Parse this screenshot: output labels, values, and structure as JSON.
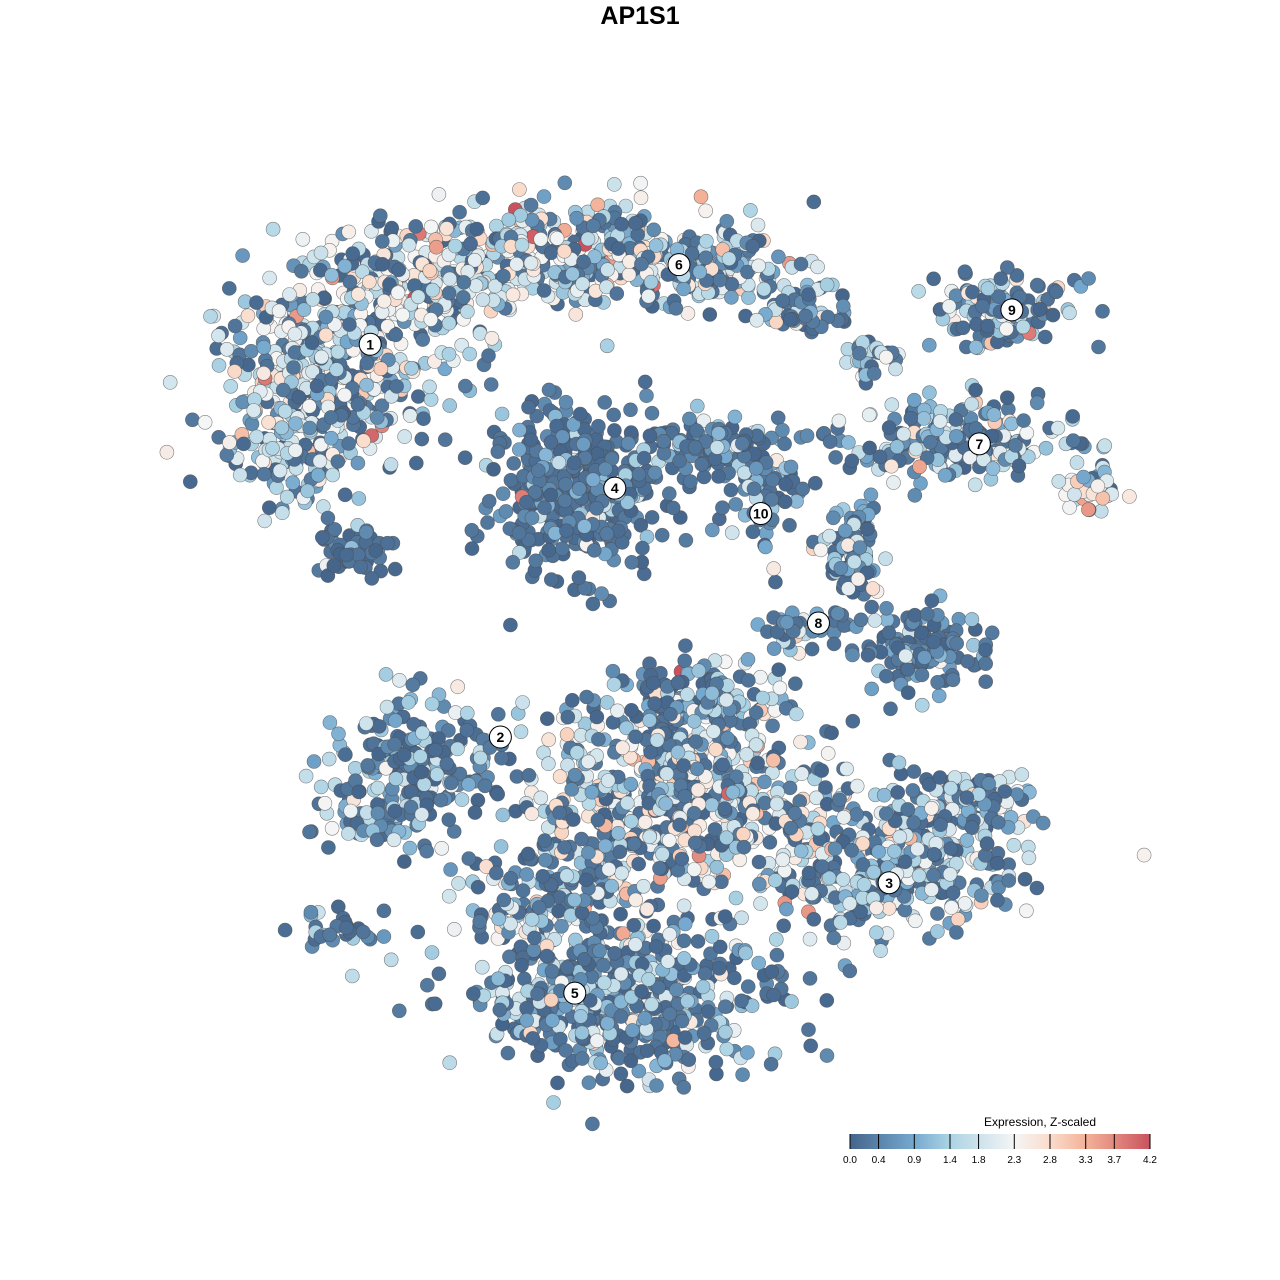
{
  "chart_data": {
    "type": "scatter",
    "title": "AP1S1",
    "xlabel": "",
    "ylabel": "",
    "xlim": [
      -50,
      50
    ],
    "ylim": [
      -50,
      50
    ],
    "grid": false,
    "axes_visible": false,
    "color_scale": {
      "title": "Expression, Z-scaled",
      "range": [
        0.0,
        4.2
      ],
      "ticks": [
        "0.0",
        "0.4",
        "0.9",
        "1.4",
        "1.8",
        "2.3",
        "2.8",
        "3.3",
        "3.7",
        "4.2"
      ],
      "tick_values": [
        0.0,
        0.4,
        0.9,
        1.4,
        1.8,
        2.3,
        2.8,
        3.3,
        3.7,
        4.2
      ],
      "stops": [
        {
          "v": 0.0,
          "color": "#45658b"
        },
        {
          "v": 0.9,
          "color": "#76a9cf"
        },
        {
          "v": 1.4,
          "color": "#acd3e4"
        },
        {
          "v": 2.3,
          "color": "#f5f5f5"
        },
        {
          "v": 2.8,
          "color": "#fadccb"
        },
        {
          "v": 3.3,
          "color": "#f3b299"
        },
        {
          "v": 3.7,
          "color": "#e3897e"
        },
        {
          "v": 4.2,
          "color": "#c9525e"
        }
      ],
      "legend_position": "bottom-right"
    },
    "clusters": [
      {
        "x": -36.0,
        "y": 30.7,
        "sx": 11.8,
        "sy": 9.9,
        "n": 400,
        "mean": 1.8,
        "zero_frac": 0.35
      },
      {
        "x": -39.2,
        "y": 20.7,
        "sx": 7.5,
        "sy": 6.6,
        "n": 120,
        "mean": 1.6,
        "zero_frac": 0.4
      },
      {
        "x": -33.9,
        "y": 9.7,
        "sx": 4.3,
        "sy": 2.8,
        "n": 50,
        "mean": 0.5,
        "zero_frac": 0.85
      },
      {
        "x": -26.3,
        "y": 39.5,
        "sx": 9.7,
        "sy": 5.5,
        "n": 200,
        "mean": 2.1,
        "zero_frac": 0.3
      },
      {
        "x": -10.2,
        "y": 42.8,
        "sx": 12.9,
        "sy": 5.5,
        "n": 300,
        "mean": 1.9,
        "zero_frac": 0.3
      },
      {
        "x": 5.9,
        "y": 40.6,
        "sx": 8.6,
        "sy": 4.4,
        "n": 150,
        "mean": 1.5,
        "zero_frac": 0.4
      },
      {
        "x": 14.5,
        "y": 36.2,
        "sx": 4.3,
        "sy": 2.8,
        "n": 60,
        "mean": 1.2,
        "zero_frac": 0.5
      },
      {
        "x": 36.0,
        "y": 36.2,
        "sx": 7.0,
        "sy": 3.9,
        "n": 120,
        "mean": 1.6,
        "zero_frac": 0.4
      },
      {
        "x": 31.7,
        "y": 21.8,
        "sx": 11.8,
        "sy": 3.9,
        "n": 200,
        "mean": 1.5,
        "zero_frac": 0.4
      },
      {
        "x": 45.7,
        "y": 16.3,
        "sx": 3.2,
        "sy": 2.2,
        "n": 40,
        "mean": 2.0,
        "zero_frac": 0.2
      },
      {
        "x": 22.0,
        "y": 30.7,
        "sx": 3.2,
        "sy": 2.2,
        "n": 30,
        "mean": 1.8,
        "zero_frac": 0.3
      },
      {
        "x": -9.1,
        "y": 16.3,
        "sx": 8.6,
        "sy": 8.3,
        "n": 400,
        "mean": 0.8,
        "zero_frac": 0.7
      },
      {
        "x": 3.8,
        "y": 20.7,
        "sx": 5.4,
        "sy": 3.3,
        "n": 80,
        "mean": 0.6,
        "zero_frac": 0.75
      },
      {
        "x": 10.8,
        "y": 17.4,
        "sx": 4.3,
        "sy": 6.6,
        "n": 80,
        "mean": 0.9,
        "zero_frac": 0.65
      },
      {
        "x": 19.9,
        "y": 9.7,
        "sx": 3.2,
        "sy": 5.5,
        "n": 80,
        "mean": 1.2,
        "zero_frac": 0.5
      },
      {
        "x": 27.4,
        "y": -1.4,
        "sx": 6.5,
        "sy": 3.9,
        "n": 140,
        "mean": 0.9,
        "zero_frac": 0.65
      },
      {
        "x": 14.5,
        "y": 0.8,
        "sx": 4.3,
        "sy": 2.2,
        "n": 40,
        "mean": 1.0,
        "zero_frac": 0.5
      },
      {
        "x": -26.3,
        "y": -13.5,
        "sx": 9.7,
        "sy": 6.1,
        "n": 200,
        "mean": 1.3,
        "zero_frac": 0.5
      },
      {
        "x": -31.7,
        "y": -20.2,
        "sx": 5.4,
        "sy": 3.3,
        "n": 60,
        "mean": 1.4,
        "zero_frac": 0.5
      },
      {
        "x": 24.2,
        "y": -24.6,
        "sx": 12.9,
        "sy": 6.6,
        "n": 350,
        "mean": 1.7,
        "zero_frac": 0.35
      },
      {
        "x": 31.7,
        "y": -18.0,
        "sx": 6.5,
        "sy": 3.3,
        "n": 100,
        "mean": 1.6,
        "zero_frac": 0.4
      },
      {
        "x": 1.6,
        "y": -18.0,
        "sx": 16.1,
        "sy": 9.9,
        "n": 600,
        "mean": 1.9,
        "zero_frac": 0.35
      },
      {
        "x": 3.8,
        "y": -6.9,
        "sx": 8.6,
        "sy": 4.4,
        "n": 150,
        "mean": 1.3,
        "zero_frac": 0.55
      },
      {
        "x": -4.8,
        "y": -40.1,
        "sx": 15.1,
        "sy": 7.7,
        "n": 500,
        "mean": 1.3,
        "zero_frac": 0.5
      },
      {
        "x": -12.4,
        "y": -29.0,
        "sx": 7.5,
        "sy": 5.5,
        "n": 150,
        "mean": 1.5,
        "zero_frac": 0.45
      },
      {
        "x": -34.9,
        "y": -32.3,
        "sx": 5.4,
        "sy": 2.2,
        "n": 30,
        "mean": 0.9,
        "zero_frac": 0.6
      }
    ],
    "cluster_labels": [
      {
        "label": "1",
        "x": -31.7,
        "y": 32.4
      },
      {
        "label": "6",
        "x": 1.5,
        "y": 41.2
      },
      {
        "label": "9",
        "x": 37.3,
        "y": 36.2
      },
      {
        "label": "7",
        "x": 33.8,
        "y": 21.4
      },
      {
        "label": "4",
        "x": -5.4,
        "y": 16.5
      },
      {
        "label": "10",
        "x": 10.3,
        "y": 13.7
      },
      {
        "label": "8",
        "x": 16.5,
        "y": 1.6
      },
      {
        "label": "2",
        "x": -17.7,
        "y": -11.0
      },
      {
        "label": "3",
        "x": 24.1,
        "y": -27.1
      },
      {
        "label": "5",
        "x": -9.7,
        "y": -39.3
      }
    ]
  }
}
